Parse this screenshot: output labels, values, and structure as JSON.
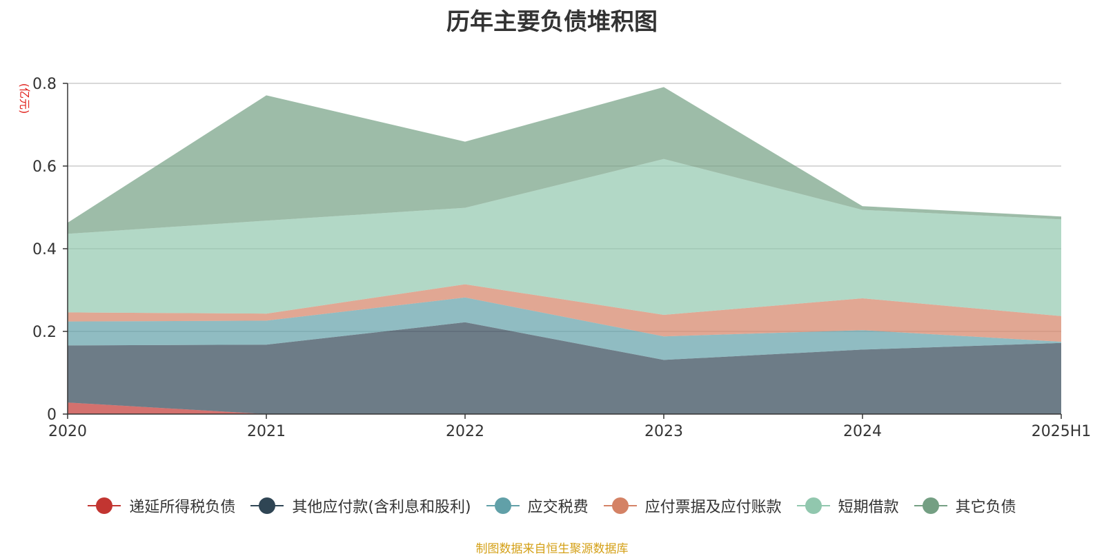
{
  "chart_data": {
    "type": "area",
    "stacked": true,
    "title": "历年主要负债堆积图",
    "unit_label": "(亿元)",
    "categories": [
      "2020",
      "2021",
      "2022",
      "2023",
      "2024",
      "2025H1"
    ],
    "ylim": [
      0,
      0.8
    ],
    "y_ticks": [
      "0",
      "0.2",
      "0.4",
      "0.6",
      "0.8"
    ],
    "y_tick_values": [
      0,
      0.2,
      0.4,
      0.6,
      0.8
    ],
    "grid": true,
    "legend_position": "bottom",
    "series": [
      {
        "name": "递延所得税负债",
        "color": "#c23531",
        "values": [
          0.028,
          0.0,
          0.0,
          0.0,
          0.0,
          0.0
        ]
      },
      {
        "name": "其他应付款(含利息和股利)",
        "color": "#2f4554",
        "values": [
          0.138,
          0.168,
          0.222,
          0.131,
          0.156,
          0.172
        ]
      },
      {
        "name": "应交税费",
        "color": "#61a0a8",
        "values": [
          0.058,
          0.058,
          0.06,
          0.057,
          0.047,
          0.003
        ]
      },
      {
        "name": "应付票据及应付账款",
        "color": "#d48265",
        "values": [
          0.022,
          0.017,
          0.032,
          0.052,
          0.077,
          0.062
        ]
      },
      {
        "name": "短期借款",
        "color": "#91c7ae",
        "values": [
          0.19,
          0.225,
          0.185,
          0.377,
          0.214,
          0.234
        ]
      },
      {
        "name": "其它负债",
        "color": "#749f83",
        "values": [
          0.027,
          0.303,
          0.16,
          0.174,
          0.009,
          0.007
        ]
      }
    ]
  },
  "source_text": "制图数据来自恒生聚源数据库"
}
